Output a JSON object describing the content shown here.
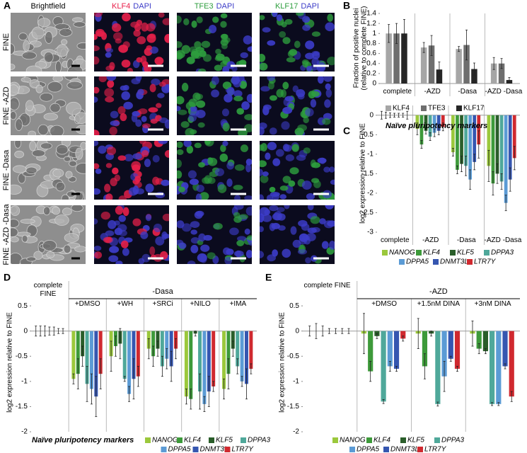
{
  "panel_labels": [
    "A",
    "B",
    "C",
    "D",
    "E"
  ],
  "image_grid": {
    "columns": [
      [
        {
          "text": "Brightfield",
          "color": "#000000"
        }
      ],
      [
        {
          "text": "KLF4",
          "color": "#e8204a"
        },
        {
          "text": "DAPI",
          "color": "#3c3cc8"
        }
      ],
      [
        {
          "text": "TFE3",
          "color": "#2e9e3e"
        },
        {
          "text": "DAPI",
          "color": "#3c3cc8"
        }
      ],
      [
        {
          "text": "KLF17",
          "color": "#2e9e3e"
        },
        {
          "text": "DAPI",
          "color": "#3c3cc8"
        }
      ]
    ],
    "rows": [
      "FINE",
      "FINE -AZD",
      "FINE -Dasa",
      "FINE -AZD -Dasa"
    ]
  },
  "chart_data": [
    {
      "type": "bar",
      "ylabel": [
        "Fraction of positive nuclei",
        "(relative to complete FINE)"
      ],
      "categories": [
        "complete",
        "-AZD",
        "-Dasa",
        "-AZD -Dasa"
      ],
      "ylim": [
        0,
        1.4
      ],
      "yticks": [
        0,
        0.2,
        0.4,
        0.6,
        0.8,
        1,
        1.2,
        1.4
      ],
      "series": [
        {
          "name": "KLF4",
          "color": "#a6a6a6",
          "values": [
            1,
            0.72,
            0.69,
            0.4
          ],
          "errors": [
            0.18,
            0.1,
            0.05,
            0.12
          ]
        },
        {
          "name": "TFE3",
          "color": "#6e6e6e",
          "values": [
            1,
            0.76,
            0.77,
            0.4
          ],
          "errors": [
            0.2,
            0.2,
            0.3,
            0.1
          ]
        },
        {
          "name": "KLF17",
          "color": "#262626",
          "values": [
            1,
            0.28,
            0.29,
            0.07
          ],
          "errors": [
            0.28,
            0.15,
            0.12,
            0.05
          ]
        }
      ]
    },
    {
      "type": "bar",
      "title": "Naïve pluripotency markers",
      "ylabel": "log2 expression relative to FINE",
      "categories": [
        "complete",
        "-AZD",
        "-Dasa",
        "-AZD -Dasa"
      ],
      "ylim": [
        -3,
        0.25
      ],
      "yticks": [
        0,
        -0.5,
        -1,
        -1.5,
        -2,
        -2.5,
        -3
      ],
      "series": [
        {
          "name": "NANOG",
          "color": "#9bc83c",
          "values": [
            0,
            -0.35,
            -0.95,
            -1.3
          ],
          "errors": [
            0.1,
            0.15,
            0.1,
            0.4
          ]
        },
        {
          "name": "KLF4",
          "color": "#3d9a3a",
          "values": [
            0,
            -0.75,
            -1.4,
            -1.75
          ],
          "errors": [
            0.08,
            0.1,
            0.1,
            0.3
          ]
        },
        {
          "name": "KLF5",
          "color": "#2a5e2a",
          "values": [
            0,
            -0.4,
            -1.25,
            -1.5
          ],
          "errors": [
            0.06,
            0.08,
            0.2,
            0.25
          ]
        },
        {
          "name": "DPPA3",
          "color": "#4fa89a",
          "values": [
            0,
            -0.55,
            -1.3,
            -1.7
          ],
          "errors": [
            0.05,
            0.1,
            0.25,
            0.2
          ]
        },
        {
          "name": "DPPA5",
          "color": "#5b9bd5",
          "values": [
            0,
            -0.45,
            -1.65,
            -2.25
          ],
          "errors": [
            0.05,
            0.1,
            0.25,
            0.2
          ]
        },
        {
          "name": "DNMT3L",
          "color": "#3556b0",
          "values": [
            0,
            -0.4,
            -1.2,
            -1.65
          ],
          "errors": [
            0.05,
            0.1,
            0.2,
            0.3
          ]
        },
        {
          "name": "LTR7Y",
          "color": "#d0292f",
          "values": [
            0,
            -0.3,
            -0.75,
            -1.1
          ],
          "errors": [
            0.1,
            0.1,
            0.35,
            0.3
          ]
        }
      ]
    },
    {
      "type": "bar",
      "title": "Naïve pluripotency markers",
      "ylabel": "log2 expression relative to FINE",
      "categories": [
        "complete FINE",
        "+DMSO",
        "+WH",
        "+SRCi",
        "+NILO",
        "+IMA"
      ],
      "groups": [
        {
          "label": "-Dasa",
          "from": 1,
          "to": 5
        }
      ],
      "ylim": [
        -2,
        0.6
      ],
      "yticks": [
        0.5,
        0,
        -0.5,
        -1,
        -1.5,
        -2
      ],
      "series": [
        {
          "name": "NANOG",
          "color": "#9bc83c",
          "values": [
            0,
            -0.95,
            -0.5,
            -0.35,
            -1.3,
            -1.15
          ],
          "errors": [
            0.1,
            0.1,
            0.3,
            0.2,
            0.15,
            0.2
          ]
        },
        {
          "name": "KLF4",
          "color": "#3d9a3a",
          "values": [
            0,
            -0.85,
            -0.3,
            -0.5,
            -1.35,
            -0.85
          ],
          "errors": [
            0.1,
            0.3,
            0.2,
            0.2,
            0.2,
            0.3
          ]
        },
        {
          "name": "KLF5",
          "color": "#2a5e2a",
          "values": [
            0,
            -0.5,
            -0.25,
            -0.35,
            -0.05,
            -0.35
          ],
          "errors": [
            0.1,
            0.2,
            0.3,
            0.15,
            0.05,
            0.15
          ]
        },
        {
          "name": "DPPA3",
          "color": "#4fa89a",
          "values": [
            0,
            -1.05,
            -0.95,
            -0.7,
            -1.2,
            -0.7
          ],
          "errors": [
            0.08,
            0.35,
            0.05,
            0.2,
            0.35,
            0.15
          ]
        },
        {
          "name": "DPPA5",
          "color": "#5b9bd5",
          "values": [
            0,
            -1.15,
            -1.25,
            -0.55,
            -1.45,
            -1.0
          ],
          "errors": [
            0.08,
            0.3,
            0.15,
            0.2,
            0.15,
            0.1
          ]
        },
        {
          "name": "DNMT3L",
          "color": "#3556b0",
          "values": [
            0,
            -1.3,
            -0.95,
            -0.7,
            -1.2,
            -1.05
          ],
          "errors": [
            0.05,
            0.4,
            0.4,
            0.3,
            0.3,
            0.3
          ]
        },
        {
          "name": "LTR7Y",
          "color": "#d0292f",
          "values": [
            0,
            -0.85,
            -0.9,
            -0.35,
            -1.1,
            -0.75
          ],
          "errors": [
            0.05,
            0.3,
            0.2,
            0.2,
            0.1,
            0.1
          ]
        }
      ]
    },
    {
      "type": "bar",
      "ylabel": "log2 expression relative to FINE",
      "categories": [
        "complete FINE",
        "+DMSO",
        "+1.5nM DINA",
        "+3nM DINA"
      ],
      "groups": [
        {
          "label": "-AZD",
          "from": 1,
          "to": 3
        }
      ],
      "ylim": [
        -2,
        0.6
      ],
      "yticks": [
        0.5,
        0,
        -0.5,
        -1,
        -1.5,
        -2
      ],
      "series": [
        {
          "name": "NANOG",
          "color": "#9bc83c",
          "values": [
            0,
            -0.05,
            -0.05,
            -0.05
          ],
          "errors": [
            0.1,
            0.4,
            0.3,
            0.25
          ]
        },
        {
          "name": "KLF4",
          "color": "#3d9a3a",
          "values": [
            0,
            -0.8,
            -0.7,
            -0.35
          ],
          "errors": [
            0.15,
            0.2,
            0.25,
            0.1
          ]
        },
        {
          "name": "KLF5",
          "color": "#2a5e2a",
          "values": [
            0,
            -0.1,
            -0.05,
            -0.4
          ],
          "errors": [
            0.1,
            0.05,
            0.05,
            0.05
          ]
        },
        {
          "name": "DPPA3",
          "color": "#4fa89a",
          "values": [
            0,
            -1.4,
            -1.45,
            -1.45
          ],
          "errors": [
            0.05,
            0.04,
            0.04,
            0.03
          ]
        },
        {
          "name": "DPPA5",
          "color": "#5b9bd5",
          "values": [
            0,
            -0.7,
            -0.9,
            -1.45
          ],
          "errors": [
            0.05,
            0.1,
            0.3,
            0.03
          ]
        },
        {
          "name": "DNMT3L",
          "color": "#3556b0",
          "values": [
            0,
            -0.75,
            -0.55,
            -0.7
          ],
          "errors": [
            0.05,
            0.05,
            0.05,
            0.05
          ]
        },
        {
          "name": "LTR7Y",
          "color": "#d0292f",
          "values": [
            0,
            -0.15,
            -0.75,
            -1.3
          ],
          "errors": [
            0.05,
            0.05,
            0.05,
            0.1
          ]
        }
      ]
    }
  ]
}
